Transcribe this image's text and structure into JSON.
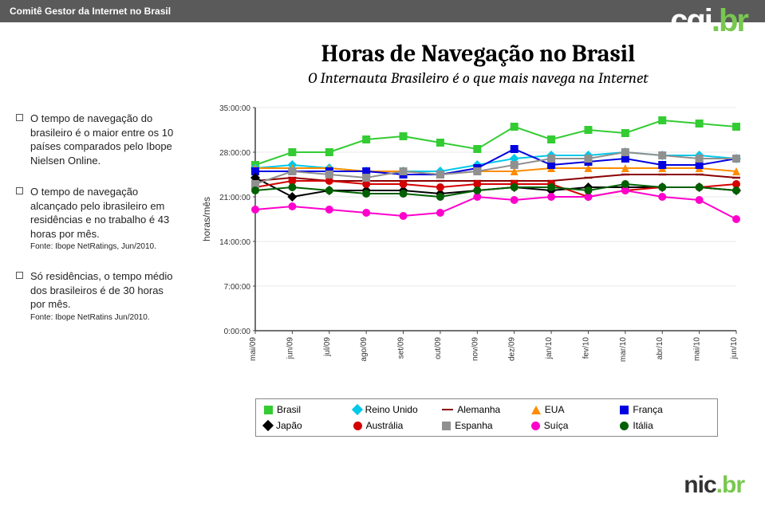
{
  "topbar": {
    "text": "Comitê Gestor da Internet no Brasil"
  },
  "logoTop": {
    "text": "cgi",
    "accent": ".br"
  },
  "logoBottom": {
    "text": "nic",
    "accent": ".br"
  },
  "title": "Horas de Navegação no Brasil",
  "subtitle": "O Internauta Brasileiro é o que mais navega na Internet",
  "bullets": [
    {
      "text": "O tempo de navegação do brasileiro é o maior entre os 10 países comparados pelo Ibope Nielsen Online."
    },
    {
      "text": "O tempo de navegação alcançado pelo ibrasileiro em residências e no trabalho é 43 horas por mês.",
      "note": "Fonte: Ibope NetRatings, Jun/2010."
    },
    {
      "text": "Só residências, o tempo médio dos brasileiros é de 30 horas por mês.",
      "note": "Fonte: Ibope NetRatins Jun/2010."
    }
  ],
  "chart": {
    "type": "line",
    "yAxisLabel": "horas/mês",
    "background": "#ffffff",
    "gridColor": "#e8e8e8",
    "axisColor": "#444444",
    "categories": [
      "mai/09",
      "jun/09",
      "jul/09",
      "ago/09",
      "set/09",
      "out/09",
      "nov/09",
      "dez/09",
      "jan/10",
      "fev/10",
      "mar/10",
      "abr/10",
      "mai/10",
      "jun/10"
    ],
    "yTicks": [
      "0:00:00",
      "7:00:00",
      "14:00:00",
      "21:00:00",
      "28:00:00",
      "35:00:00"
    ],
    "yRange": [
      0,
      35
    ],
    "markerSize": 5,
    "lineWidth": 2.0,
    "tickFontSize": 10,
    "series": [
      {
        "name": "Brasil",
        "color": "#33cc33",
        "marker": "square",
        "values": [
          26.0,
          28.0,
          28.0,
          30.0,
          30.5,
          29.5,
          28.5,
          32.0,
          30.0,
          31.5,
          31.0,
          33.0,
          32.5,
          32.0
        ]
      },
      {
        "name": "Reino Unido",
        "color": "#00c8e8",
        "marker": "diamond",
        "values": [
          25.5,
          26.0,
          25.5,
          25.0,
          25.0,
          25.0,
          26.0,
          27.0,
          27.5,
          27.5,
          28.0,
          27.5,
          27.5,
          27.0
        ]
      },
      {
        "name": "Alemanha",
        "color": "#8b0000",
        "marker": "dash",
        "values": [
          23.5,
          24.0,
          23.5,
          23.5,
          23.5,
          23.5,
          23.5,
          23.5,
          23.5,
          24.0,
          24.5,
          24.5,
          24.5,
          24.0
        ]
      },
      {
        "name": "EUA",
        "color": "#ff8c00",
        "marker": "triangle",
        "values": [
          25.5,
          25.5,
          25.5,
          25.0,
          25.0,
          24.5,
          25.0,
          25.0,
          25.5,
          25.5,
          25.5,
          25.5,
          25.5,
          25.0
        ]
      },
      {
        "name": "França",
        "color": "#0000e0",
        "marker": "square",
        "values": [
          25.0,
          25.0,
          25.0,
          25.0,
          24.5,
          24.5,
          25.5,
          28.5,
          26.0,
          26.5,
          27.0,
          26.0,
          26.0,
          27.0
        ]
      },
      {
        "name": "Japão",
        "color": "#000000",
        "marker": "diamond",
        "values": [
          24.0,
          21.0,
          22.0,
          22.0,
          22.0,
          21.5,
          22.0,
          22.5,
          22.0,
          22.5,
          22.5,
          22.5,
          22.5,
          22.0
        ]
      },
      {
        "name": "Austrália",
        "color": "#d40000",
        "marker": "circle",
        "values": [
          22.5,
          23.5,
          23.5,
          23.0,
          23.0,
          22.5,
          23.0,
          23.0,
          23.0,
          21.0,
          22.0,
          22.5,
          22.5,
          23.0
        ]
      },
      {
        "name": "Espanha",
        "color": "#909090",
        "marker": "square",
        "values": [
          23.0,
          25.0,
          24.5,
          24.0,
          25.0,
          24.5,
          25.0,
          26.0,
          27.0,
          27.0,
          28.0,
          27.5,
          27.0,
          27.0
        ]
      },
      {
        "name": "Suíça",
        "color": "#ff00cc",
        "marker": "circle",
        "values": [
          19.0,
          19.5,
          19.0,
          18.5,
          18.0,
          18.5,
          21.0,
          20.5,
          21.0,
          21.0,
          22.0,
          21.0,
          20.5,
          17.5
        ]
      },
      {
        "name": "Itália",
        "color": "#006000",
        "marker": "circle",
        "values": [
          22.0,
          22.5,
          22.0,
          21.5,
          21.5,
          21.0,
          22.0,
          22.5,
          22.5,
          22.0,
          23.0,
          22.5,
          22.5,
          22.0
        ]
      }
    ]
  },
  "legend": {
    "borderColor": "#888888",
    "fontSize": 12,
    "items": [
      {
        "label": "Brasil",
        "color": "#33cc33",
        "shape": "sq"
      },
      {
        "label": "Reino Unido",
        "color": "#00c8e8",
        "shape": "di"
      },
      {
        "label": "Alemanha",
        "color": "#8b0000",
        "shape": "da"
      },
      {
        "label": "EUA",
        "color": "#ff8c00",
        "shape": "tr"
      },
      {
        "label": "França",
        "color": "#0000e0",
        "shape": "sq"
      },
      {
        "label": "Japão",
        "color": "#000000",
        "shape": "di"
      },
      {
        "label": "Austrália",
        "color": "#d40000",
        "shape": "ci"
      },
      {
        "label": "Espanha",
        "color": "#909090",
        "shape": "sq"
      },
      {
        "label": "Suíça",
        "color": "#ff00cc",
        "shape": "ci"
      },
      {
        "label": "Itália",
        "color": "#006000",
        "shape": "ci"
      }
    ]
  }
}
